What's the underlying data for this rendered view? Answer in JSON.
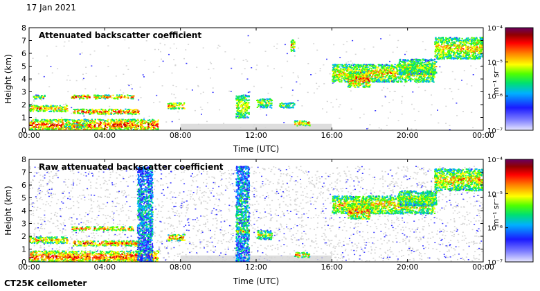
{
  "date": "17 Jan 2021",
  "instrument": "CT25K ceilometer",
  "colors": {
    "grey_noise": "#d4d4d4",
    "colormap": [
      "#e8e8ff",
      "#1a1aff",
      "#00b0ff",
      "#00e070",
      "#50ff00",
      "#ffff00",
      "#ff8000",
      "#ff0000",
      "#900000",
      "#6a0060"
    ]
  },
  "chart_data": [
    {
      "type": "heatmap",
      "title": "Attenuated backscatter coefficient",
      "xlabel": "Time (UTC)",
      "ylabel": "Height (km)",
      "xlim": [
        0,
        24
      ],
      "ylim": [
        0,
        8
      ],
      "xticks": [
        "00:00",
        "04:00",
        "08:00",
        "12:00",
        "16:00",
        "20:00",
        "00:00"
      ],
      "yticks": [
        "0",
        "1",
        "2",
        "3",
        "4",
        "5",
        "6",
        "7",
        "8"
      ],
      "colorbar": {
        "label": "m⁻¹ sr⁻¹",
        "scale": "log",
        "range": [
          1e-07,
          0.0001
        ],
        "ticks": [
          "10⁻⁷",
          "10⁻⁶",
          "10⁻⁵",
          "10⁻⁴"
        ]
      },
      "noise_level": 0.12,
      "features": [
        {
          "x0": 0.0,
          "x1": 6.8,
          "y0": 0.0,
          "y1": 0.9,
          "level": 0.8
        },
        {
          "x0": 0.0,
          "x1": 2.0,
          "y0": 1.5,
          "y1": 2.0,
          "level": 0.7
        },
        {
          "x0": 0.2,
          "x1": 0.8,
          "y0": 2.5,
          "y1": 2.8,
          "level": 0.55
        },
        {
          "x0": 2.2,
          "x1": 3.2,
          "y0": 2.5,
          "y1": 2.8,
          "level": 0.8
        },
        {
          "x0": 3.4,
          "x1": 5.5,
          "y0": 2.5,
          "y1": 2.8,
          "level": 0.75
        },
        {
          "x0": 2.3,
          "x1": 5.8,
          "y0": 1.3,
          "y1": 1.7,
          "level": 0.8
        },
        {
          "x0": 1.8,
          "x1": 3.0,
          "y0": 0.3,
          "y1": 0.6,
          "level": 0.6
        },
        {
          "x0": 7.3,
          "x1": 8.2,
          "y0": 1.7,
          "y1": 2.2,
          "level": 0.75
        },
        {
          "x0": 10.9,
          "x1": 11.6,
          "y0": 1.0,
          "y1": 2.8,
          "level": 0.6
        },
        {
          "x0": 12.0,
          "x1": 12.8,
          "y0": 1.8,
          "y1": 2.5,
          "level": 0.55
        },
        {
          "x0": 13.2,
          "x1": 14.0,
          "y0": 1.8,
          "y1": 2.2,
          "level": 0.5
        },
        {
          "x0": 14.0,
          "x1": 14.8,
          "y0": 0.4,
          "y1": 0.8,
          "level": 0.7
        },
        {
          "x0": 13.8,
          "x1": 14.0,
          "y0": 6.2,
          "y1": 7.1,
          "level": 0.7
        },
        {
          "x0": 16.0,
          "x1": 21.4,
          "y0": 3.8,
          "y1": 5.2,
          "level": 0.65
        },
        {
          "x0": 16.8,
          "x1": 18.0,
          "y0": 3.4,
          "y1": 4.6,
          "level": 0.75
        },
        {
          "x0": 21.4,
          "x1": 24.0,
          "y0": 5.6,
          "y1": 7.3,
          "level": 0.65
        },
        {
          "x0": 19.5,
          "x1": 21.5,
          "y0": 4.4,
          "y1": 5.6,
          "level": 0.55
        }
      ]
    },
    {
      "type": "heatmap",
      "title": "Raw attenuated backscatter coefficient",
      "xlabel": "Time (UTC)",
      "ylabel": "Height (km)",
      "xlim": [
        0,
        24
      ],
      "ylim": [
        0,
        8
      ],
      "xticks": [
        "00:00",
        "04:00",
        "08:00",
        "12:00",
        "16:00",
        "20:00",
        "00:00"
      ],
      "yticks": [
        "0",
        "1",
        "2",
        "3",
        "4",
        "5",
        "6",
        "7",
        "8"
      ],
      "colorbar": {
        "label": "m⁻¹ sr⁻¹",
        "scale": "log",
        "range": [
          1e-07,
          0.0001
        ],
        "ticks": [
          "10⁻⁷",
          "10⁻⁶",
          "10⁻⁵",
          "10⁻⁴"
        ]
      },
      "noise_level": 0.9,
      "features": [
        {
          "x0": 0.0,
          "x1": 6.8,
          "y0": 0.0,
          "y1": 0.9,
          "level": 0.8
        },
        {
          "x0": 0.0,
          "x1": 2.0,
          "y0": 1.5,
          "y1": 2.0,
          "level": 0.7
        },
        {
          "x0": 2.2,
          "x1": 3.2,
          "y0": 2.5,
          "y1": 2.8,
          "level": 0.8
        },
        {
          "x0": 3.4,
          "x1": 5.5,
          "y0": 2.5,
          "y1": 2.8,
          "level": 0.75
        },
        {
          "x0": 2.3,
          "x1": 5.8,
          "y0": 1.3,
          "y1": 1.7,
          "level": 0.8
        },
        {
          "x0": 5.7,
          "x1": 6.5,
          "y0": 0.0,
          "y1": 7.5,
          "level": 0.3
        },
        {
          "x0": 7.3,
          "x1": 8.2,
          "y0": 1.7,
          "y1": 2.2,
          "level": 0.75
        },
        {
          "x0": 10.9,
          "x1": 11.6,
          "y0": 0.0,
          "y1": 7.5,
          "level": 0.35
        },
        {
          "x0": 10.9,
          "x1": 11.6,
          "y0": 2.3,
          "y1": 2.6,
          "level": 0.7
        },
        {
          "x0": 12.0,
          "x1": 12.8,
          "y0": 1.8,
          "y1": 2.5,
          "level": 0.55
        },
        {
          "x0": 14.0,
          "x1": 14.8,
          "y0": 0.4,
          "y1": 0.8,
          "level": 0.7
        },
        {
          "x0": 16.0,
          "x1": 21.4,
          "y0": 3.8,
          "y1": 5.2,
          "level": 0.65
        },
        {
          "x0": 16.8,
          "x1": 18.0,
          "y0": 3.4,
          "y1": 4.6,
          "level": 0.75
        },
        {
          "x0": 21.4,
          "x1": 24.0,
          "y0": 5.6,
          "y1": 7.3,
          "level": 0.65
        },
        {
          "x0": 19.5,
          "x1": 21.5,
          "y0": 4.4,
          "y1": 5.6,
          "level": 0.55
        }
      ]
    }
  ]
}
